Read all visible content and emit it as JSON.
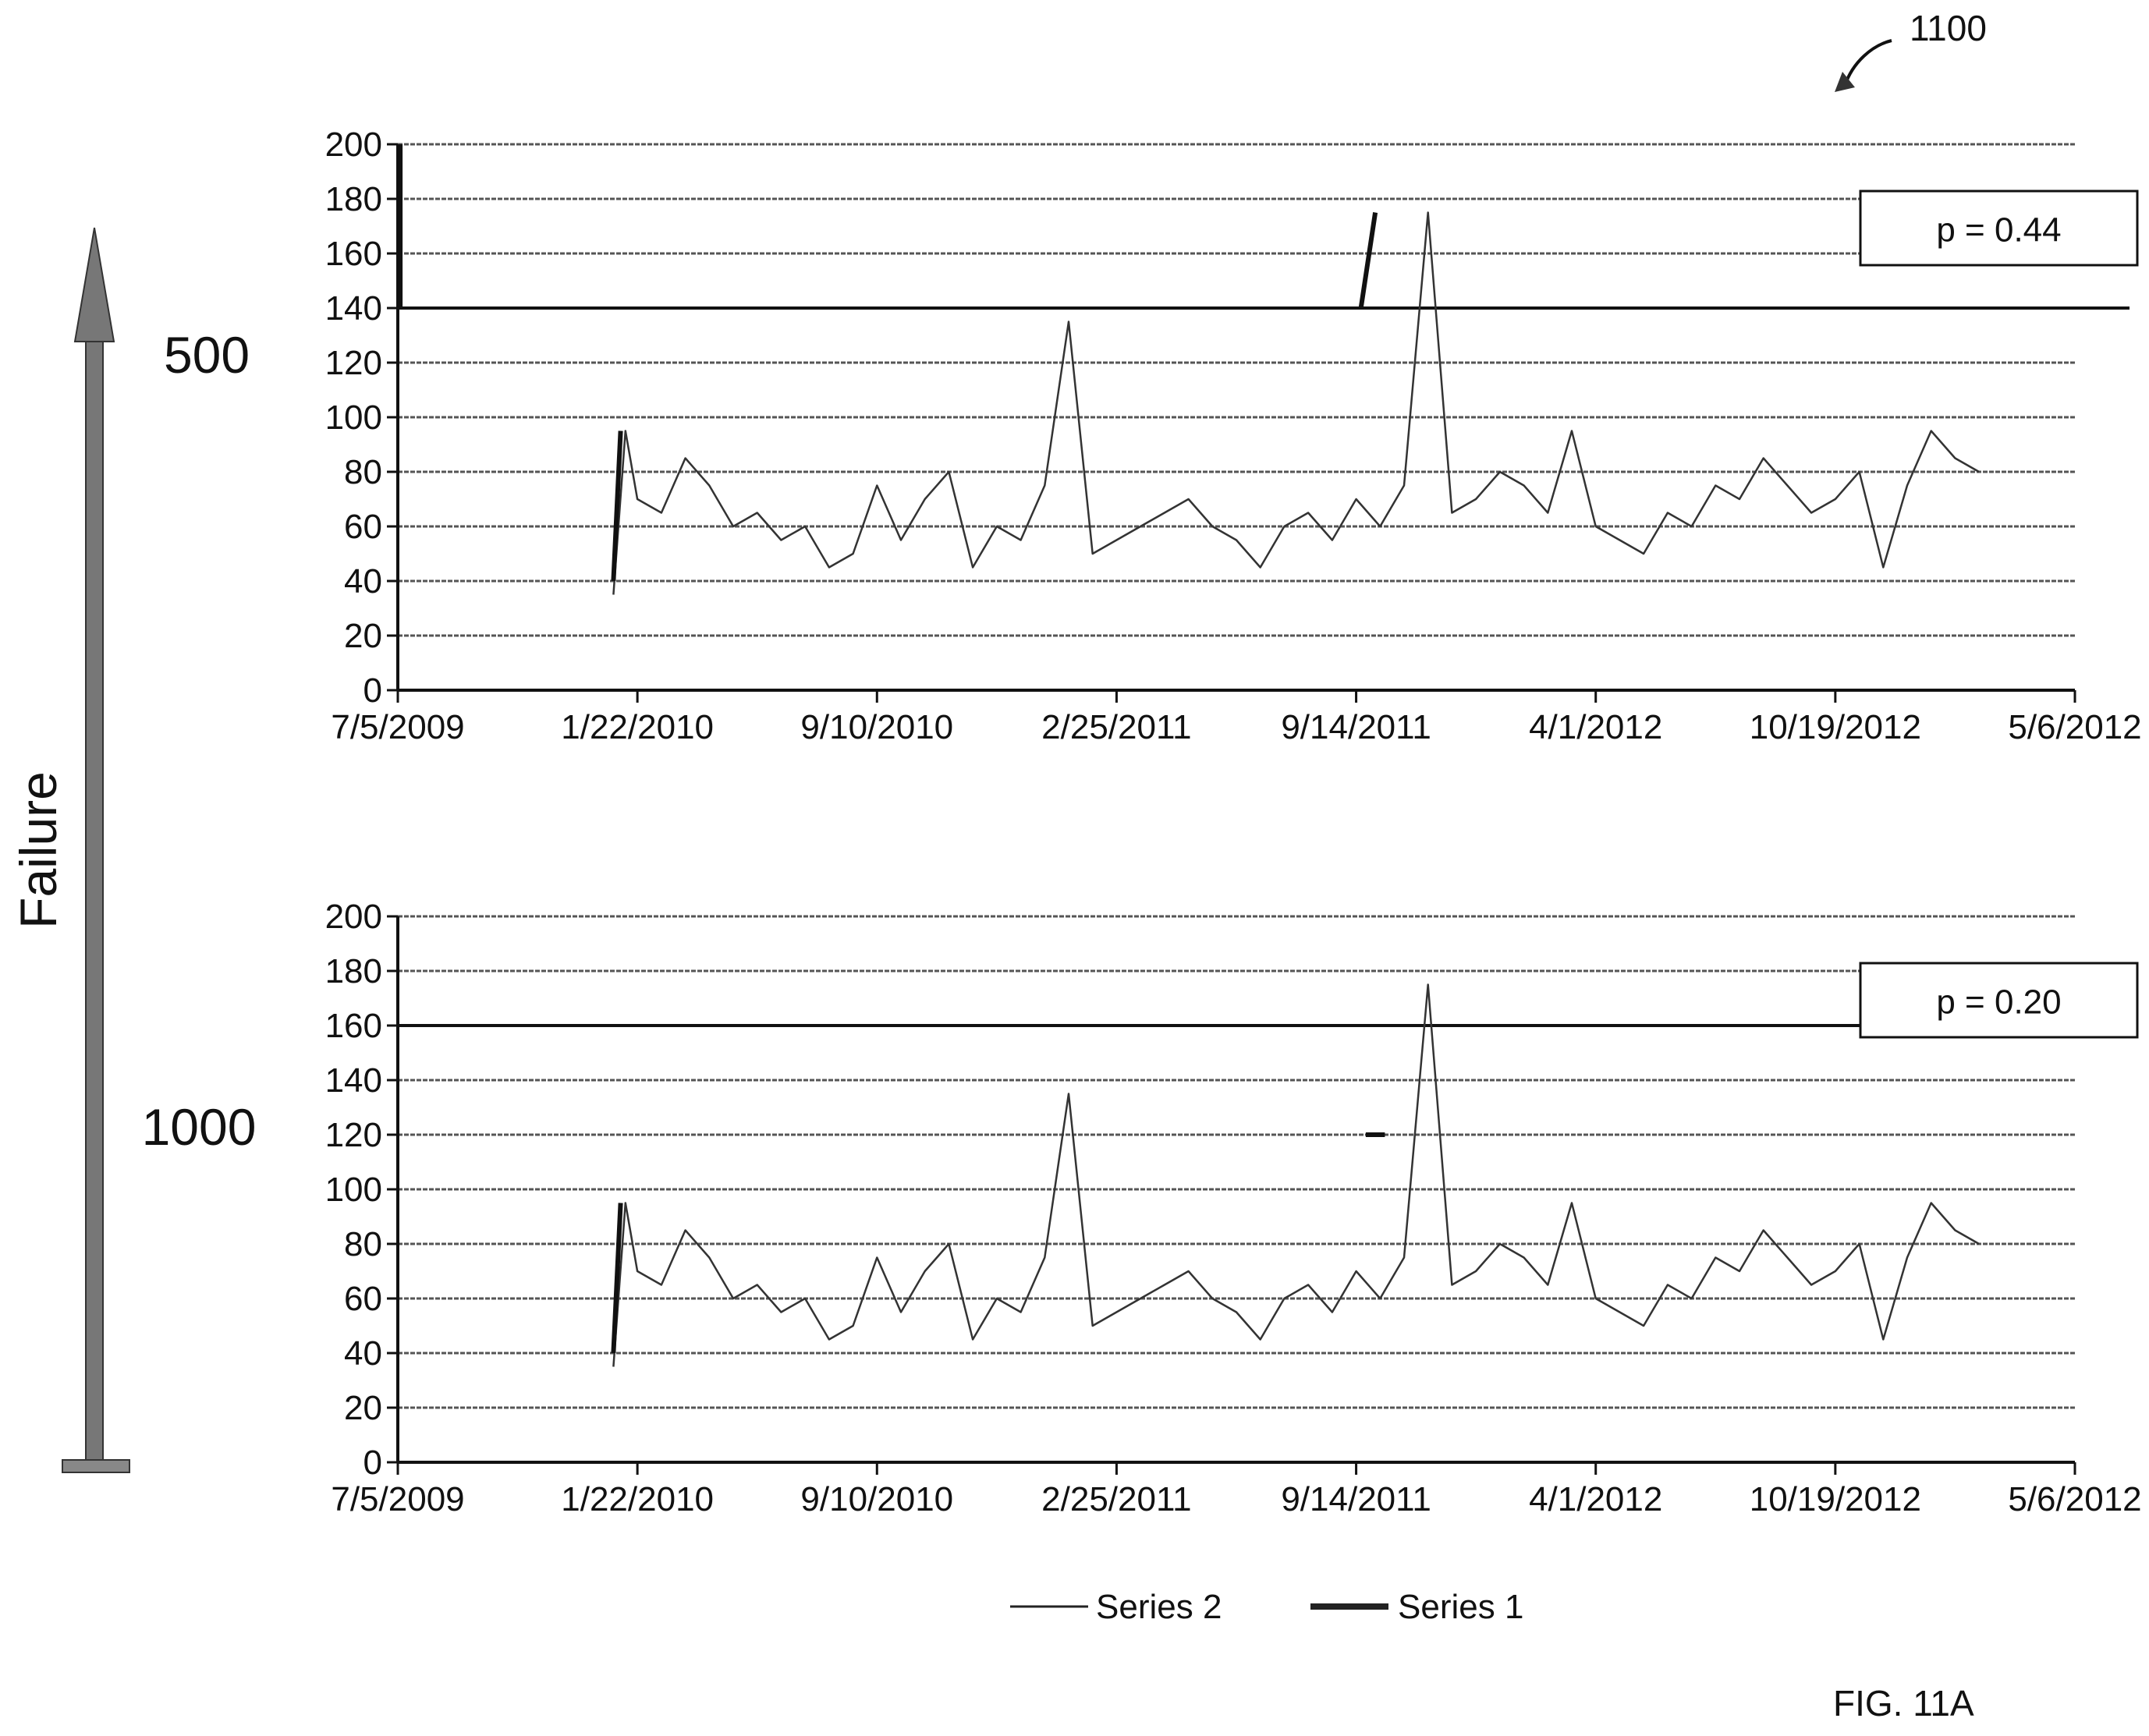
{
  "figure": {
    "ref_number": "1100",
    "caption": "FIG. 11A"
  },
  "side_axis": {
    "label": "Failure",
    "levels": [
      "500",
      "1000"
    ]
  },
  "legend": {
    "items": [
      {
        "name": "Series 2",
        "style": "thin"
      },
      {
        "name": "Series 1",
        "style": "thick"
      }
    ]
  },
  "chart_data": [
    {
      "type": "line",
      "level": "500",
      "annotation": "p = 0.44",
      "threshold": 140,
      "ylim": [
        0,
        200
      ],
      "y_ticks": [
        "0",
        "20",
        "40",
        "60",
        "80",
        "100",
        "120",
        "140",
        "160",
        "180",
        "200"
      ],
      "x_tick_labels": [
        "7/5/2009",
        "1/22/2010",
        "9/10/2010",
        "2/25/2011",
        "9/14/2011",
        "4/1/2012",
        "10/19/2012",
        "5/6/2012"
      ],
      "series2_approx": {
        "x_tick_index": [
          0.9,
          0.95,
          1.0,
          1.1,
          1.2,
          1.3,
          1.4,
          1.5,
          1.6,
          1.7,
          1.8,
          1.9,
          2.0,
          2.1,
          2.2,
          2.3,
          2.4,
          2.5,
          2.6,
          2.7,
          2.8,
          2.9,
          3.0,
          3.1,
          3.2,
          3.3,
          3.4,
          3.5,
          3.6,
          3.7,
          3.8,
          3.9,
          4.0,
          4.1,
          4.2,
          4.3,
          4.4,
          4.5,
          4.6,
          4.7,
          4.8,
          4.9,
          5.0,
          5.1,
          5.2,
          5.3,
          5.4,
          5.5,
          5.6,
          5.7,
          5.8,
          5.9,
          6.0,
          6.1,
          6.2,
          6.3,
          6.4,
          6.5,
          6.6
        ],
        "values": [
          35,
          95,
          70,
          65,
          85,
          75,
          60,
          65,
          55,
          60,
          45,
          50,
          75,
          55,
          70,
          80,
          45,
          60,
          55,
          75,
          135,
          50,
          55,
          60,
          65,
          70,
          60,
          55,
          45,
          60,
          65,
          55,
          70,
          60,
          75,
          175,
          65,
          70,
          80,
          75,
          65,
          95,
          60,
          55,
          50,
          65,
          60,
          75,
          70,
          85,
          75,
          65,
          70,
          80,
          45,
          75,
          95,
          85,
          80
        ]
      },
      "series1_segments": [
        {
          "x_tick_index": [
            0.01,
            0.01
          ],
          "values": [
            140,
            200
          ]
        },
        {
          "x_tick_index": [
            0.9,
            0.93
          ],
          "values": [
            40,
            95
          ]
        },
        {
          "x_tick_index": [
            4.02,
            4.08
          ],
          "values": [
            140,
            175
          ]
        }
      ]
    },
    {
      "type": "line",
      "level": "1000",
      "annotation": "p = 0.20",
      "threshold": 160,
      "ylim": [
        0,
        200
      ],
      "y_ticks": [
        "0",
        "20",
        "40",
        "60",
        "80",
        "100",
        "120",
        "140",
        "160",
        "180",
        "200"
      ],
      "x_tick_labels": [
        "7/5/2009",
        "1/22/2010",
        "9/10/2010",
        "2/25/2011",
        "9/14/2011",
        "4/1/2012",
        "10/19/2012",
        "5/6/2012"
      ],
      "series2_approx": {
        "x_tick_index": [
          0.9,
          0.95,
          1.0,
          1.1,
          1.2,
          1.3,
          1.4,
          1.5,
          1.6,
          1.7,
          1.8,
          1.9,
          2.0,
          2.1,
          2.2,
          2.3,
          2.4,
          2.5,
          2.6,
          2.7,
          2.8,
          2.9,
          3.0,
          3.1,
          3.2,
          3.3,
          3.4,
          3.5,
          3.6,
          3.7,
          3.8,
          3.9,
          4.0,
          4.1,
          4.2,
          4.3,
          4.4,
          4.5,
          4.6,
          4.7,
          4.8,
          4.9,
          5.0,
          5.1,
          5.2,
          5.3,
          5.4,
          5.5,
          5.6,
          5.7,
          5.8,
          5.9,
          6.0,
          6.1,
          6.2,
          6.3,
          6.4,
          6.5,
          6.6
        ],
        "values": [
          35,
          95,
          70,
          65,
          85,
          75,
          60,
          65,
          55,
          60,
          45,
          50,
          75,
          55,
          70,
          80,
          45,
          60,
          55,
          75,
          135,
          50,
          55,
          60,
          65,
          70,
          60,
          55,
          45,
          60,
          65,
          55,
          70,
          60,
          75,
          175,
          65,
          70,
          80,
          75,
          65,
          95,
          60,
          55,
          50,
          65,
          60,
          75,
          70,
          85,
          75,
          65,
          70,
          80,
          45,
          75,
          95,
          85,
          80
        ]
      },
      "series1_segments": [
        {
          "x_tick_index": [
            0.9,
            0.93
          ],
          "values": [
            40,
            95
          ]
        },
        {
          "x_tick_index": [
            4.04,
            4.12
          ],
          "values": [
            120,
            120
          ]
        }
      ]
    }
  ]
}
